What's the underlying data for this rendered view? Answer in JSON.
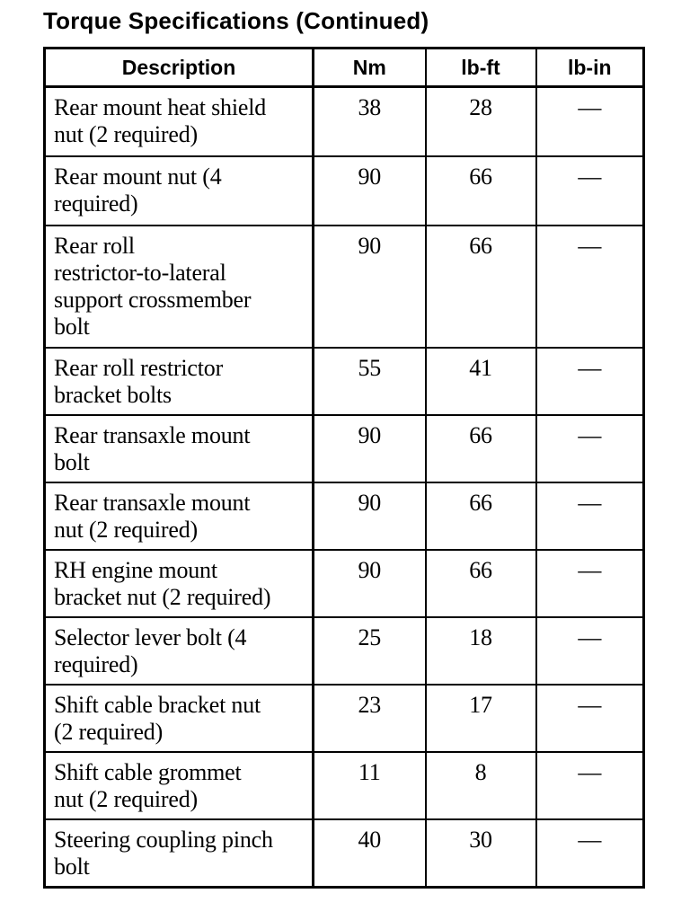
{
  "page": {
    "title": "Torque Specifications (Continued)"
  },
  "table": {
    "columns": [
      "Description",
      "Nm",
      "lb-ft",
      "lb-in"
    ],
    "rows": [
      {
        "description": "Rear mount heat shield\nnut (2 required)",
        "nm": "38",
        "lbft": "28",
        "lbin": "—"
      },
      {
        "description": "Rear mount nut (4\nrequired)",
        "nm": "90",
        "lbft": "66",
        "lbin": "—"
      },
      {
        "description": "Rear roll\nrestrictor-to-lateral\nsupport crossmember\nbolt",
        "nm": "90",
        "lbft": "66",
        "lbin": "—"
      },
      {
        "description": "Rear roll restrictor\nbracket bolts",
        "nm": "55",
        "lbft": "41",
        "lbin": "—"
      },
      {
        "description": "Rear transaxle mount\nbolt",
        "nm": "90",
        "lbft": "66",
        "lbin": "—"
      },
      {
        "description": "Rear transaxle mount\nnut (2 required)",
        "nm": "90",
        "lbft": "66",
        "lbin": "—"
      },
      {
        "description": "RH engine mount\nbracket nut (2 required)",
        "nm": "90",
        "lbft": "66",
        "lbin": "—"
      },
      {
        "description": "Selector lever bolt (4\nrequired)",
        "nm": "25",
        "lbft": "18",
        "lbin": "—"
      },
      {
        "description": "Shift cable bracket nut\n(2 required)",
        "nm": "23",
        "lbft": "17",
        "lbin": "—"
      },
      {
        "description": "Shift cable grommet\nnut (2 required)",
        "nm": "11",
        "lbft": "8",
        "lbin": "—"
      },
      {
        "description": "Steering coupling pinch\nbolt",
        "nm": "40",
        "lbft": "30",
        "lbin": "—"
      }
    ]
  },
  "colors": {
    "ink": "#000000",
    "paper": "#ffffff"
  }
}
